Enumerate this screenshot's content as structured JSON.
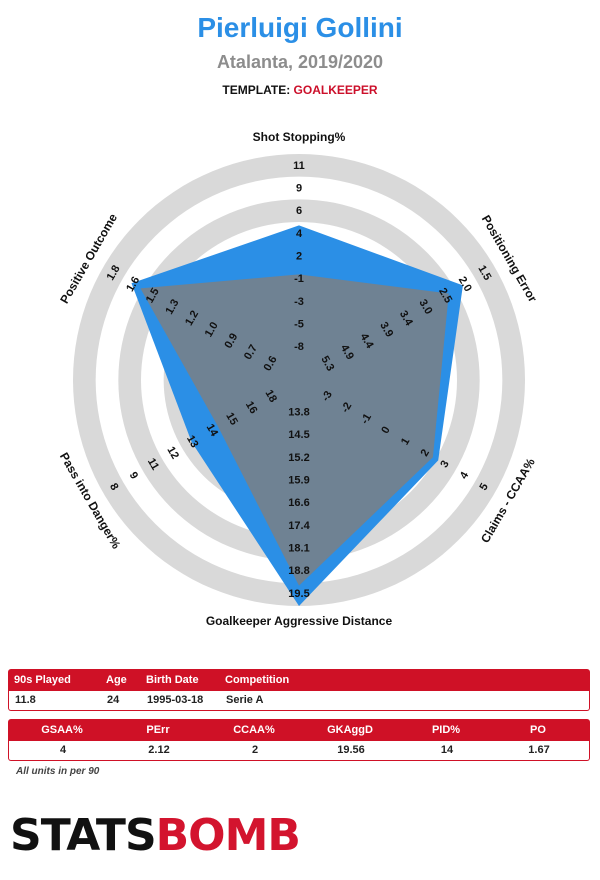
{
  "header": {
    "player": "Pierluigi Gollini",
    "team_season": "Atalanta, 2019/2020",
    "template_label": "TEMPLATE:",
    "template_value": "GOALKEEPER"
  },
  "colors": {
    "blue": "#2b8fe6",
    "gray_fill": "#74818c",
    "ring_gray": "#d9d9d9",
    "red": "#cf1126"
  },
  "chart_data": {
    "type": "radar",
    "title": "Pierluigi Gollini",
    "axes": [
      {
        "label": "Shot Stopping%",
        "ticks": [
          "-8",
          "-5",
          "-3",
          "-1",
          "2",
          "4",
          "6",
          "9",
          "11"
        ],
        "value": 4,
        "raw": "4"
      },
      {
        "label": "Positioning Error",
        "ticks": [
          "5.3",
          "4.9",
          "4.4",
          "3.9",
          "3.4",
          "3.0",
          "2.5",
          "2.0",
          "1.5"
        ],
        "value": 2.12,
        "raw": "2.12"
      },
      {
        "label": "Claims - CCAA%",
        "ticks": [
          "-3",
          "-2",
          "-1",
          "0",
          "1",
          "2",
          "3",
          "4",
          "5"
        ],
        "value": 2,
        "raw": "2"
      },
      {
        "label": "Goalkeeper Aggressive Distance",
        "ticks": [
          "13.8",
          "14.5",
          "15.2",
          "15.9",
          "16.6",
          "17.4",
          "18.1",
          "18.8",
          "19.5"
        ],
        "value": 19.56,
        "raw": "19.56"
      },
      {
        "label": "Pass into Danger%",
        "ticks": [
          "18",
          "16",
          "15",
          "14",
          "13",
          "12",
          "11",
          "9",
          "8"
        ],
        "value": 14,
        "raw": "14"
      },
      {
        "label": "Positive Outcome",
        "ticks": [
          "0.6",
          "0.7",
          "0.9",
          "1.0",
          "1.2",
          "1.3",
          "1.5",
          "1.6",
          "1.8"
        ],
        "value": 1.67,
        "raw": "1.67"
      }
    ],
    "player_levels": [
      0.65,
      0.82,
      0.68,
      1.0,
      0.5,
      0.84
    ],
    "average_levels": [
      0.41,
      0.74,
      0.65,
      0.9,
      0.35,
      0.79
    ]
  },
  "info_table": {
    "headers": [
      "90s Played",
      "Age",
      "Birth Date",
      "Competition"
    ],
    "values": [
      "11.8",
      "24",
      "1995-03-18",
      "Serie A"
    ]
  },
  "stats_table": {
    "headers": [
      "GSAA%",
      "PErr",
      "CCAA%",
      "GKAggD",
      "PID%",
      "PO"
    ],
    "values": [
      "4",
      "2.12",
      "2",
      "19.56",
      "14",
      "1.67"
    ]
  },
  "note": "All units in per 90",
  "logo": {
    "part1": "STATS",
    "part2": "BOMB"
  }
}
